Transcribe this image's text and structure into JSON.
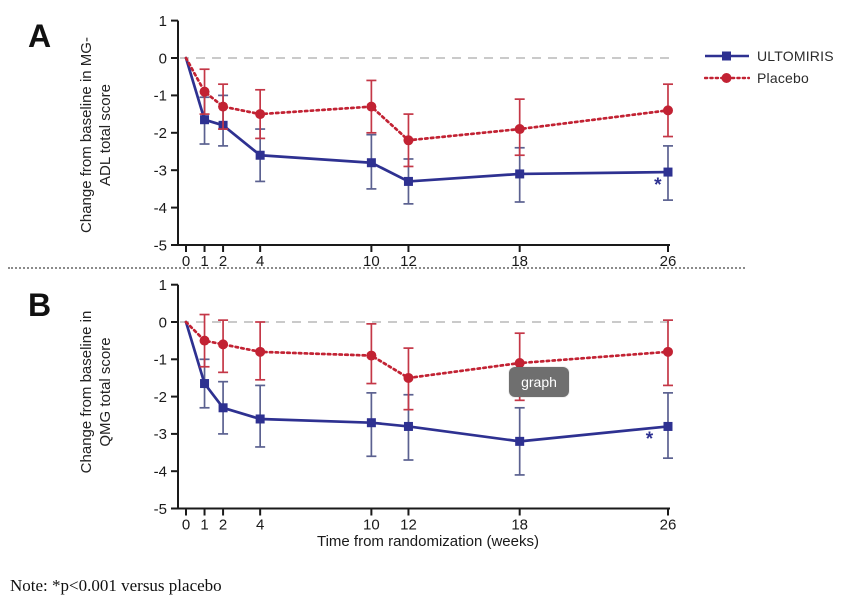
{
  "figure": {
    "background": "#ffffff"
  },
  "panels": [
    {
      "label": "A",
      "ylabel_line1": "Change from baseline in",
      "ylabel_line2": "MG-ADL total score"
    },
    {
      "label": "B",
      "ylabel_line1": "Change from baseline in",
      "ylabel_line2": "QMG total score"
    }
  ],
  "legend": {
    "position": "top-right",
    "items": [
      {
        "label": "ULTOMIRIS",
        "marker": "square",
        "line": "solid"
      },
      {
        "label": "Placebo",
        "marker": "circle",
        "line": "dotted"
      }
    ]
  },
  "tooltip": {
    "text": "graph"
  },
  "note": "Note: *p<0.001 versus placebo",
  "colors": {
    "ultomiris": "#2e3191",
    "placebo": "#c22233",
    "ultomiris_error": "#5b6190",
    "placebo_error": "#c43747",
    "axis": "#1a1a1a",
    "zero_line": "#b9b9b9",
    "tooltip_bg": "#6f6f6f",
    "tooltip_text": "#ffffff"
  },
  "chart_data": [
    {
      "type": "line",
      "panel": "A",
      "title": "",
      "xlabel": "",
      "ylabel": "Change from baseline in MG-ADL total score",
      "x": [
        0,
        1,
        2,
        4,
        10,
        12,
        18,
        26
      ],
      "xticks": [
        0,
        1,
        2,
        4,
        10,
        12,
        18,
        26
      ],
      "ylim": [
        -5,
        1
      ],
      "yticks": [
        1,
        0,
        -1,
        -2,
        -3,
        -4,
        -5
      ],
      "zero_reference_line": true,
      "grid": false,
      "series": [
        {
          "name": "ULTOMIRIS",
          "marker": "square",
          "line": "solid",
          "values": [
            0,
            -1.65,
            -1.8,
            -2.6,
            -2.8,
            -3.3,
            -3.1,
            -3.05
          ],
          "err_upper": [
            null,
            -1.05,
            -1.0,
            -1.9,
            -2.05,
            -2.7,
            -2.4,
            -2.35
          ],
          "err_lower": [
            null,
            -2.3,
            -2.35,
            -3.3,
            -3.5,
            -3.9,
            -3.85,
            -3.8
          ]
        },
        {
          "name": "Placebo",
          "marker": "circle",
          "line": "dotted",
          "values": [
            0,
            -0.9,
            -1.3,
            -1.5,
            -1.3,
            -2.2,
            -1.9,
            -1.4
          ],
          "err_upper": [
            null,
            -0.3,
            -0.7,
            -0.85,
            -0.6,
            -1.5,
            -1.1,
            -0.7
          ],
          "err_lower": [
            null,
            -1.5,
            -1.9,
            -2.15,
            -2.0,
            -2.9,
            -2.6,
            -2.1
          ]
        }
      ],
      "annotations": [
        {
          "text": "*",
          "week": 25.45,
          "value": -3.55
        }
      ]
    },
    {
      "type": "line",
      "panel": "B",
      "title": "",
      "xlabel": "Time from randomization (weeks)",
      "ylabel": "Change from baseline in QMG total score",
      "x": [
        0,
        1,
        2,
        4,
        10,
        12,
        18,
        26
      ],
      "xticks": [
        0,
        1,
        2,
        4,
        10,
        12,
        18,
        26
      ],
      "ylim": [
        -5,
        1
      ],
      "yticks": [
        1,
        0,
        -1,
        -2,
        -3,
        -4,
        -5
      ],
      "zero_reference_line": true,
      "grid": false,
      "series": [
        {
          "name": "ULTOMIRIS",
          "marker": "square",
          "line": "solid",
          "values": [
            0,
            -1.65,
            -2.3,
            -2.6,
            -2.7,
            -2.8,
            -3.2,
            -2.8
          ],
          "err_upper": [
            null,
            -1.0,
            -1.6,
            -1.7,
            -1.9,
            -1.95,
            -2.3,
            -1.9
          ],
          "err_lower": [
            null,
            -2.3,
            -3.0,
            -3.35,
            -3.6,
            -3.7,
            -4.1,
            -3.65
          ]
        },
        {
          "name": "Placebo",
          "marker": "circle",
          "line": "dotted",
          "values": [
            0,
            -0.5,
            -0.6,
            -0.8,
            -0.9,
            -1.5,
            -1.1,
            -0.8
          ],
          "err_upper": [
            null,
            0.2,
            0.05,
            0.0,
            -0.05,
            -0.7,
            -0.3,
            0.05
          ],
          "err_lower": [
            null,
            -1.2,
            -1.35,
            -1.55,
            -1.65,
            -2.35,
            -2.1,
            -1.7
          ]
        }
      ],
      "annotations": [
        {
          "text": "*",
          "week": 25.0,
          "value": -3.3
        }
      ]
    }
  ]
}
